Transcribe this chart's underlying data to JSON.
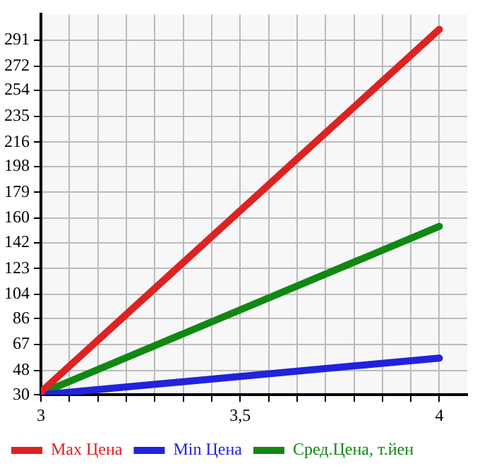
{
  "chart_data": {
    "type": "line",
    "x": [
      3,
      4
    ],
    "series": [
      {
        "name": "Max Цена",
        "color": "#dd2222",
        "values": [
          32,
          299
        ]
      },
      {
        "name": "Min Цена",
        "color": "#2222dd",
        "values": [
          30,
          57
        ]
      },
      {
        "name": "Сред.Цена, т.йен",
        "color": "#118811",
        "values": [
          31,
          154
        ]
      }
    ],
    "xlim": [
      3,
      4.07
    ],
    "xticks": [
      3,
      {
        "value": 3.0714,
        "label": null
      },
      {
        "value": 3.1429,
        "label": null
      },
      {
        "value": 3.2143,
        "label": null
      },
      {
        "value": 3.2857,
        "label": null
      },
      {
        "value": 3.3571,
        "label": null
      },
      {
        "value": 3.4286,
        "label": null
      },
      {
        "value": 3.5,
        "label": "3,5"
      },
      {
        "value": 3.5714,
        "label": null
      },
      {
        "value": 3.6429,
        "label": null
      },
      {
        "value": 3.7143,
        "label": null
      },
      {
        "value": 3.7857,
        "label": null
      },
      {
        "value": 3.8571,
        "label": null
      },
      {
        "value": 3.9286,
        "label": null
      },
      4
    ],
    "ylim": [
      30,
      310
    ],
    "yticks": [
      30,
      48,
      67,
      86,
      104,
      123,
      142,
      160,
      179,
      198,
      216,
      235,
      254,
      272,
      291
    ],
    "grid": true,
    "legend": "bottom",
    "marker": "none",
    "line_style": "solid"
  }
}
